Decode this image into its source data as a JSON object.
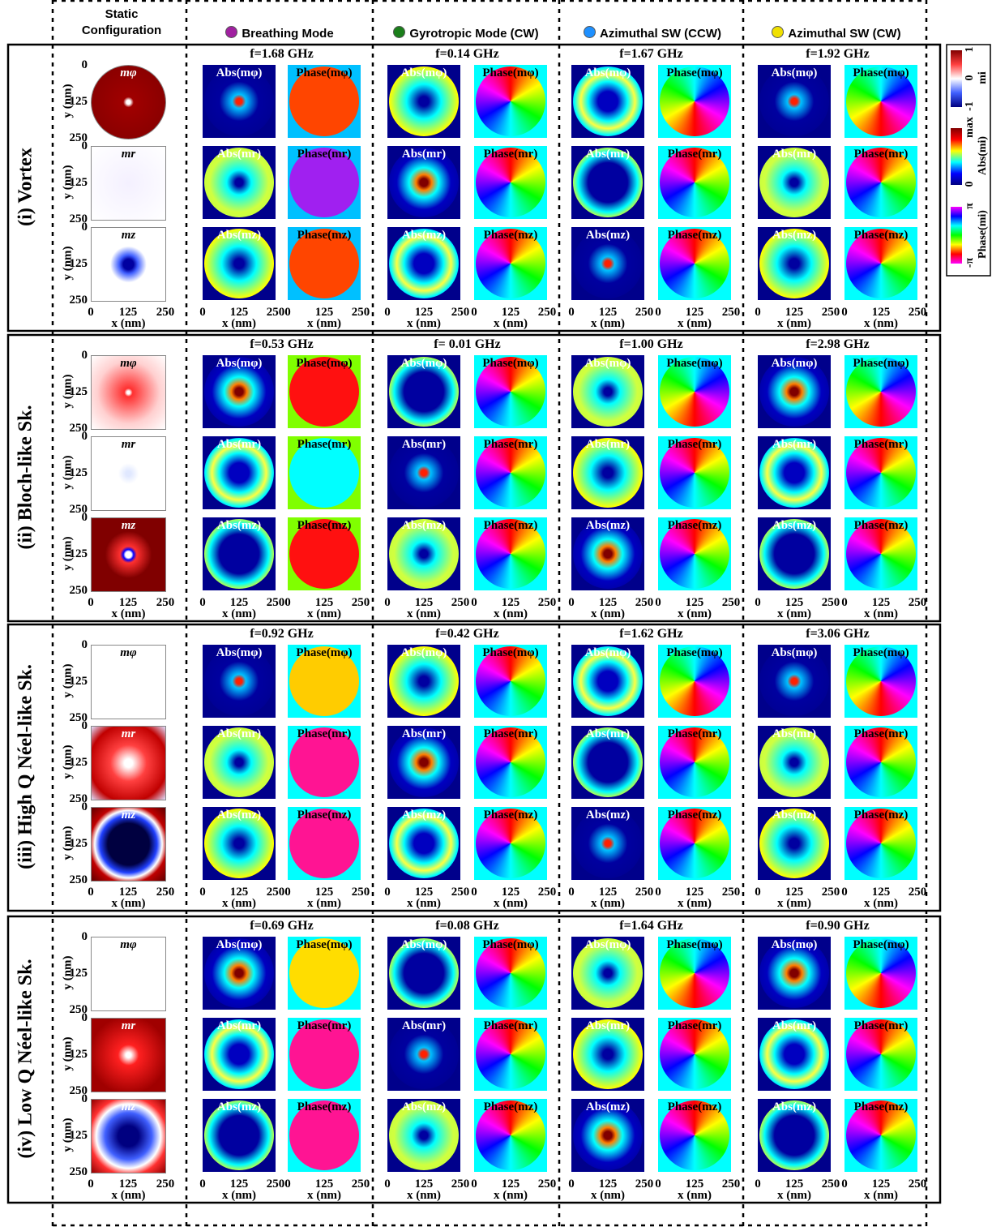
{
  "columns": [
    {
      "title": "Static Configuration"
    },
    {
      "title": "Breathing Mode",
      "color": "#a020a0"
    },
    {
      "title": "Gyrotropic Mode (CW)",
      "color": "#1a7f1a"
    },
    {
      "title": "Azimuthal SW (CCW)",
      "color": "#1e90ff"
    },
    {
      "title": "Azimuthal SW (CW)",
      "color": "#f0e000"
    }
  ],
  "rows": [
    {
      "label": "(i) Vortex",
      "frequencies": [
        "f=1.68 GHz",
        "f=0.14 GHz",
        "f=1.67 GHz",
        "f=1.92 GHz"
      ]
    },
    {
      "label": "(ii) Bloch-like Sk.",
      "frequencies": [
        "f=0.53 GHz",
        "f= 0.01 GHz",
        "f=1.00 GHz",
        "f=2.98 GHz"
      ]
    },
    {
      "label": "(iii) High Q Néel-like Sk.",
      "frequencies": [
        "f=0.92 GHz",
        "f=0.42 GHz",
        "f=1.62 GHz",
        "f=3.06 GHz"
      ]
    },
    {
      "label": "(iv) Low Q Néel-like Sk.",
      "frequencies": [
        "f=0.69 GHz",
        "f=0.08 GHz",
        "f=1.64 GHz",
        "f=0.90 GHz"
      ]
    }
  ],
  "components": [
    "mφ",
    "mr",
    "mz"
  ],
  "panel_labels": {
    "abs": [
      "Abs(mφ)",
      "Abs(mr)",
      "Abs(mz)"
    ],
    "phase": [
      "Phase(mφ)",
      "Phase(mr)",
      "Phase(mz)"
    ]
  },
  "axis": {
    "ticks": [
      0,
      125,
      250
    ],
    "x_label": "x (nm)",
    "y_label": "y (nm)"
  },
  "colorbar": {
    "static": {
      "ticks": [
        1,
        0,
        -1
      ],
      "label": "mi"
    },
    "abs": {
      "ticks": [
        "max",
        0
      ],
      "label": "Abs(mi)"
    },
    "phase": {
      "ticks": [
        "π",
        "-π"
      ],
      "label": "Phase(mi)"
    }
  }
}
